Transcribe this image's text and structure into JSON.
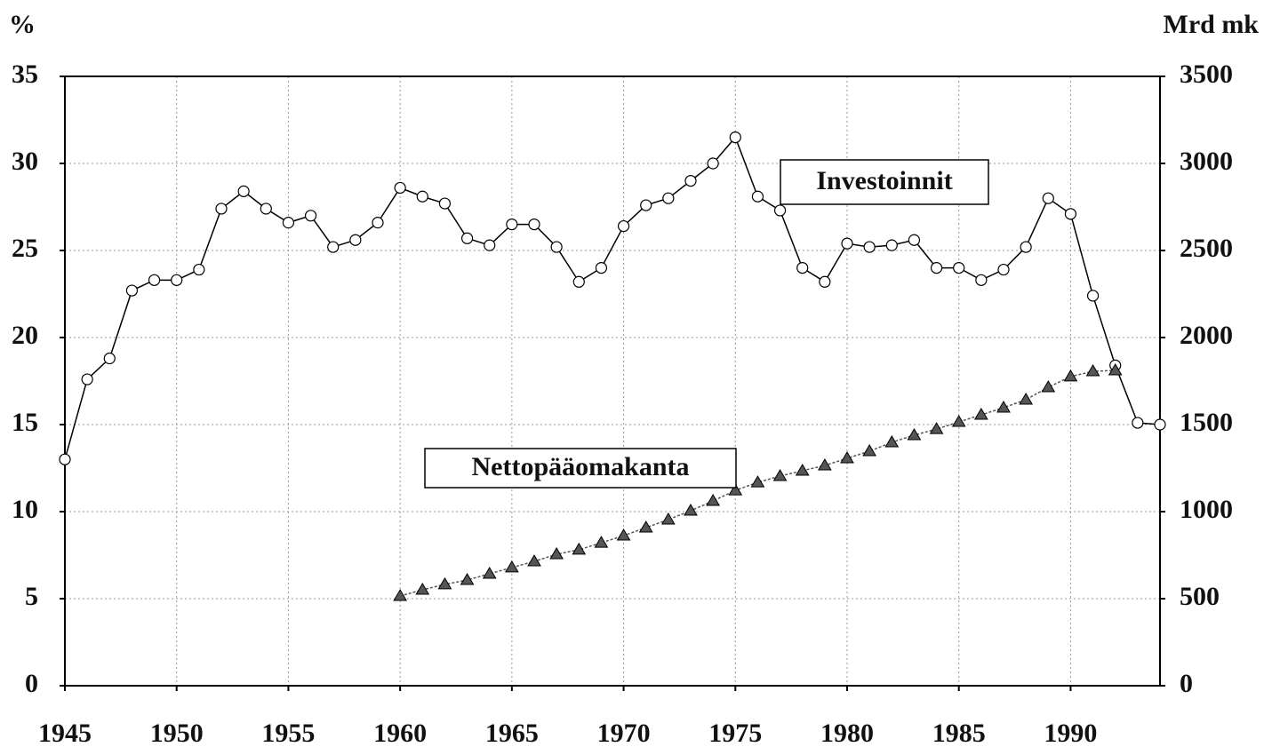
{
  "chart_data": {
    "type": "line",
    "ylabel": "%",
    "y2label": "Mrd mk",
    "x": [
      1945,
      1946,
      1947,
      1948,
      1949,
      1950,
      1951,
      1952,
      1953,
      1954,
      1955,
      1956,
      1957,
      1958,
      1959,
      1960,
      1961,
      1962,
      1963,
      1964,
      1965,
      1966,
      1967,
      1968,
      1969,
      1970,
      1971,
      1972,
      1973,
      1974,
      1975,
      1976,
      1977,
      1978,
      1979,
      1980,
      1981,
      1982,
      1983,
      1984,
      1985,
      1986,
      1987,
      1988,
      1989,
      1990,
      1991,
      1992,
      1993,
      1994
    ],
    "series": [
      {
        "name": "Investoinnit",
        "color": "#000000",
        "marker": "circle",
        "values": [
          13.0,
          17.6,
          18.8,
          22.7,
          23.3,
          23.3,
          23.9,
          27.4,
          28.4,
          27.4,
          26.6,
          27.0,
          25.2,
          25.6,
          26.6,
          28.6,
          28.1,
          27.7,
          25.7,
          25.3,
          26.5,
          26.5,
          25.2,
          23.2,
          24.0,
          26.4,
          27.6,
          28.0,
          29.0,
          30.0,
          31.5,
          28.1,
          27.3,
          24.0,
          23.2,
          25.4,
          25.2,
          25.3,
          25.6,
          24.0,
          24.0,
          23.3,
          23.9,
          25.2,
          28.0,
          27.1,
          22.4,
          18.4,
          15.1,
          15.0
        ]
      },
      {
        "name": "Nettopääomakanta",
        "color": "#555555",
        "marker": "triangle",
        "axis": "y2",
        "values": [
          null,
          null,
          null,
          null,
          null,
          null,
          null,
          null,
          null,
          null,
          null,
          null,
          null,
          null,
          null,
          515,
          551,
          582,
          607,
          643,
          679,
          714,
          755,
          781,
          821,
          862,
          908,
          954,
          1005,
          1061,
          1122,
          1168,
          1204,
          1235,
          1265,
          1306,
          1347,
          1398,
          1439,
          1474,
          1515,
          1556,
          1597,
          1643,
          1714,
          1776,
          1806,
          1811,
          null,
          null
        ]
      }
    ],
    "xlim": [
      1945,
      1994
    ],
    "xticks": [
      1945,
      1950,
      1955,
      1960,
      1965,
      1970,
      1975,
      1980,
      1985,
      1990
    ],
    "ylim": [
      0,
      35
    ],
    "yticks": [
      0,
      5,
      10,
      15,
      20,
      25,
      30,
      35
    ],
    "y2lim": [
      0,
      3500
    ],
    "y2ticks": [
      0,
      500,
      1000,
      1500,
      2000,
      2500,
      3000,
      3500
    ],
    "grid": true
  }
}
